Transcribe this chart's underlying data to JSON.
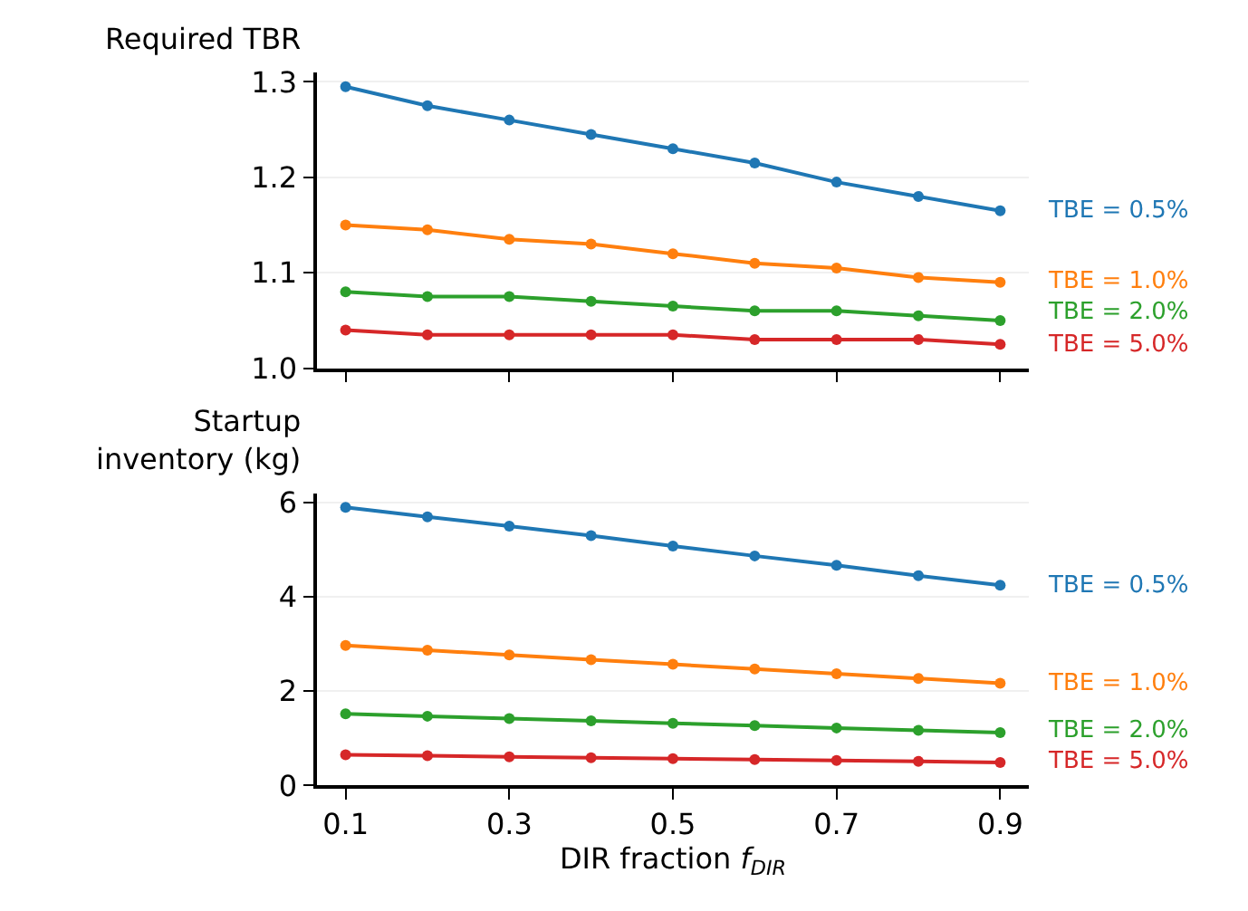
{
  "chart_data": [
    {
      "type": "line",
      "ylabel": "Required TBR",
      "x": [
        0.1,
        0.2,
        0.3,
        0.4,
        0.5,
        0.6,
        0.7,
        0.8,
        0.9
      ],
      "xlim": [
        0.065,
        0.935
      ],
      "xticks": [
        0.1,
        0.3,
        0.5,
        0.7,
        0.9
      ],
      "ylim": [
        1.0,
        1.31
      ],
      "yticks": [
        {
          "value": 1.0,
          "label": "1.0"
        },
        1.1,
        1.2,
        1.3
      ],
      "grid": "y",
      "marker": "circle",
      "line_style": "solid",
      "tick_labels": "y",
      "series": [
        {
          "name": "TBE = 0.5%",
          "color": "#1f77b4",
          "values": [
            1.295,
            1.275,
            1.26,
            1.245,
            1.23,
            1.215,
            1.195,
            1.18,
            1.165
          ]
        },
        {
          "name": "TBE = 1.0%",
          "color": "#ff7f0e",
          "values": [
            1.15,
            1.145,
            1.135,
            1.13,
            1.12,
            1.11,
            1.105,
            1.095,
            1.09
          ]
        },
        {
          "name": "TBE = 2.0%",
          "color": "#2ca02c",
          "values": [
            1.08,
            1.075,
            1.075,
            1.07,
            1.065,
            1.06,
            1.06,
            1.055,
            1.05
          ]
        },
        {
          "name": "TBE = 5.0%",
          "color": "#d62728",
          "values": [
            1.04,
            1.035,
            1.035,
            1.035,
            1.035,
            1.03,
            1.03,
            1.03,
            1.025
          ]
        }
      ]
    },
    {
      "type": "line",
      "ylabel": "Startup\ninventory (kg)",
      "xlabel": "DIR fraction f$_{DIR}$",
      "x": [
        0.1,
        0.2,
        0.3,
        0.4,
        0.5,
        0.6,
        0.7,
        0.8,
        0.9
      ],
      "xlim": [
        0.065,
        0.935
      ],
      "xticks": [
        0.1,
        0.3,
        0.5,
        0.7,
        0.9
      ],
      "ylim": [
        0,
        6.2
      ],
      "yticks": [
        0,
        2,
        4,
        6
      ],
      "grid": "y",
      "marker": "circle",
      "line_style": "solid",
      "series": [
        {
          "name": "TBE = 0.5%",
          "color": "#1f77b4",
          "values": [
            5.9,
            5.7,
            5.5,
            5.3,
            5.08,
            4.87,
            4.67,
            4.45,
            4.25
          ]
        },
        {
          "name": "TBE = 1.0%",
          "color": "#ff7f0e",
          "values": [
            2.97,
            2.87,
            2.77,
            2.67,
            2.57,
            2.47,
            2.37,
            2.27,
            2.17
          ]
        },
        {
          "name": "TBE = 2.0%",
          "color": "#2ca02c",
          "values": [
            1.52,
            1.47,
            1.42,
            1.37,
            1.32,
            1.27,
            1.22,
            1.17,
            1.12
          ]
        },
        {
          "name": "TBE = 5.0%",
          "color": "#d62728",
          "values": [
            0.65,
            0.63,
            0.61,
            0.59,
            0.57,
            0.55,
            0.53,
            0.51,
            0.49
          ]
        }
      ]
    }
  ]
}
